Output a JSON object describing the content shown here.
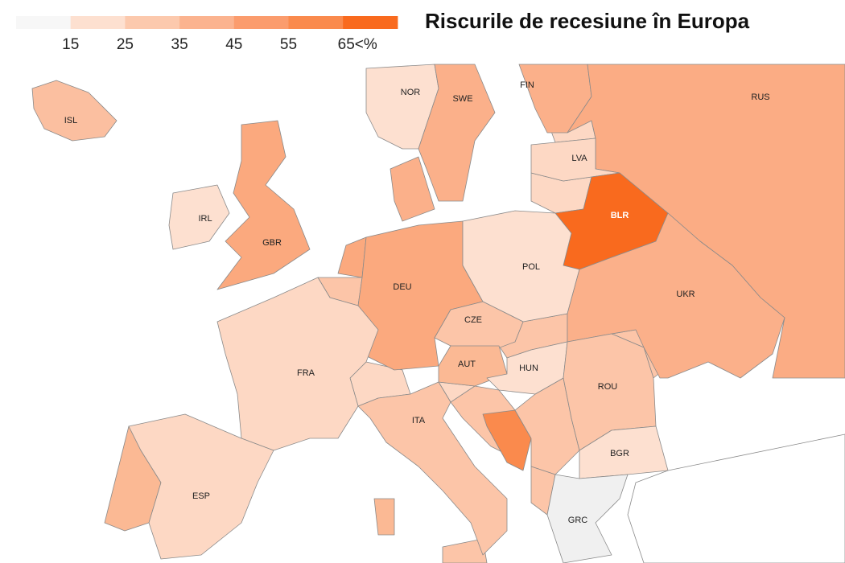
{
  "title": "Riscurile de recesiune în Europa",
  "legend": {
    "labels": [
      "15",
      "25",
      "35",
      "45",
      "55",
      "65<%"
    ],
    "colors": [
      "#f7f7f7",
      "#fde0d0",
      "#fcc9ad",
      "#fbb38f",
      "#fb9c6d",
      "#fa8a4d",
      "#f96a1e"
    ]
  },
  "countries": [
    {
      "label": "ISL",
      "color": "#fbbfa0"
    },
    {
      "label": "NOR",
      "color": "#fde0d0"
    },
    {
      "label": "SWE",
      "color": "#fbb08a"
    },
    {
      "label": "FIN",
      "color": "#fbb08a"
    },
    {
      "label": "RUS",
      "color": "#fbac84"
    },
    {
      "label": "LVA",
      "color": "#fdd8c4"
    },
    {
      "label": "BLR",
      "color": "#f96a1e"
    },
    {
      "label": "IRL",
      "color": "#fde0d0"
    },
    {
      "label": "GBR",
      "color": "#fba97e"
    },
    {
      "label": "DEU",
      "color": "#fba97e"
    },
    {
      "label": "POL",
      "color": "#fde0d0"
    },
    {
      "label": "UKR",
      "color": "#fbb08a"
    },
    {
      "label": "CZE",
      "color": "#fcc5a8"
    },
    {
      "label": "AUT",
      "color": "#fbb994"
    },
    {
      "label": "HUN",
      "color": "#fde0d0"
    },
    {
      "label": "FRA",
      "color": "#fdd8c4"
    },
    {
      "label": "ROU",
      "color": "#fcc5a8"
    },
    {
      "label": "ITA",
      "color": "#fcc5a8"
    },
    {
      "label": "ESP",
      "color": "#fdd8c4"
    },
    {
      "label": "BGR",
      "color": "#fde0d0"
    },
    {
      "label": "GRC",
      "color": "#f0f0f0"
    }
  ]
}
